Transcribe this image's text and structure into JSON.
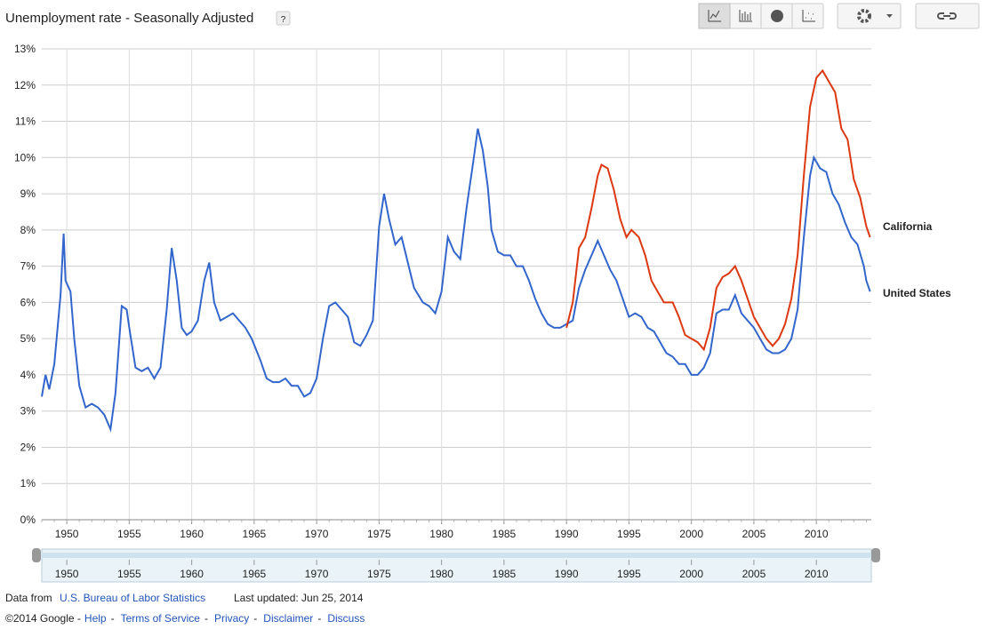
{
  "header": {
    "title": "Unemployment rate - Seasonally Adjusted",
    "help": "?"
  },
  "chart_data": {
    "type": "line",
    "xlim": [
      1948,
      2014.4
    ],
    "xticks": [
      1950,
      1955,
      1960,
      1965,
      1970,
      1975,
      1980,
      1985,
      1990,
      1995,
      2000,
      2005,
      2010
    ],
    "ylim": [
      0,
      13
    ],
    "yticks": [
      {
        "value": 0,
        "label": "0%"
      },
      {
        "value": 1,
        "label": "1%"
      },
      {
        "value": 2,
        "label": "2%"
      },
      {
        "value": 3,
        "label": "3%"
      },
      {
        "value": 4,
        "label": "4%"
      },
      {
        "value": 5,
        "label": "5%"
      },
      {
        "value": 6,
        "label": "6%"
      },
      {
        "value": 7,
        "label": "7%"
      },
      {
        "value": 8,
        "label": "8%"
      },
      {
        "value": 9,
        "label": "9%"
      },
      {
        "value": 10,
        "label": "10%"
      },
      {
        "value": 11,
        "label": "11%"
      },
      {
        "value": 12,
        "label": "12%"
      },
      {
        "value": 13,
        "label": "13%"
      }
    ],
    "grid": true,
    "series": [
      {
        "name": "United States",
        "color": "#3366cc",
        "x": [
          1948.0,
          1948.3,
          1948.6,
          1949.0,
          1949.5,
          1949.75,
          1949.9,
          1950.3,
          1950.6,
          1951.0,
          1951.5,
          1952.0,
          1952.5,
          1953.0,
          1953.5,
          1953.9,
          1954.4,
          1954.8,
          1955.0,
          1955.5,
          1956.0,
          1956.5,
          1957.0,
          1957.5,
          1958.0,
          1958.4,
          1958.8,
          1959.2,
          1959.6,
          1960.0,
          1960.5,
          1961.0,
          1961.4,
          1961.8,
          1962.3,
          1962.8,
          1963.3,
          1963.8,
          1964.3,
          1964.8,
          1965.5,
          1966.0,
          1966.5,
          1967.0,
          1967.5,
          1968.0,
          1968.5,
          1969.0,
          1969.5,
          1970.0,
          1970.5,
          1971.0,
          1971.5,
          1972.0,
          1972.5,
          1973.0,
          1973.5,
          1974.0,
          1974.5,
          1975.0,
          1975.4,
          1975.8,
          1976.3,
          1976.8,
          1977.3,
          1977.8,
          1978.5,
          1979.0,
          1979.5,
          1980.0,
          1980.5,
          1981.0,
          1981.5,
          1982.0,
          1982.5,
          1982.9,
          1983.3,
          1983.7,
          1984.0,
          1984.5,
          1985.0,
          1985.5,
          1986.0,
          1986.5,
          1987.0,
          1987.5,
          1988.0,
          1988.5,
          1989.0,
          1989.5,
          1990.0,
          1990.5,
          1991.0,
          1991.5,
          1992.0,
          1992.5,
          1993.0,
          1993.5,
          1994.0,
          1994.5,
          1995.0,
          1995.5,
          1996.0,
          1996.5,
          1997.0,
          1997.5,
          1998.0,
          1998.5,
          1999.0,
          1999.5,
          2000.0,
          2000.5,
          2001.0,
          2001.5,
          2002.0,
          2002.5,
          2003.0,
          2003.5,
          2004.0,
          2004.5,
          2005.0,
          2005.5,
          2006.0,
          2006.5,
          2007.0,
          2007.5,
          2008.0,
          2008.5,
          2009.0,
          2009.5,
          2009.8,
          2010.3,
          2010.8,
          2011.3,
          2011.8,
          2012.3,
          2012.8,
          2013.3,
          2013.8,
          2014.0,
          2014.3
        ],
        "values": [
          3.4,
          4.0,
          3.6,
          4.3,
          6.2,
          7.9,
          6.6,
          6.3,
          5.0,
          3.7,
          3.1,
          3.2,
          3.1,
          2.9,
          2.5,
          3.5,
          5.9,
          5.8,
          5.3,
          4.2,
          4.1,
          4.2,
          3.9,
          4.2,
          5.8,
          7.5,
          6.6,
          5.3,
          5.1,
          5.2,
          5.5,
          6.6,
          7.1,
          6.0,
          5.5,
          5.6,
          5.7,
          5.5,
          5.3,
          5.0,
          4.4,
          3.9,
          3.8,
          3.8,
          3.9,
          3.7,
          3.7,
          3.4,
          3.5,
          3.9,
          5.0,
          5.9,
          6.0,
          5.8,
          5.6,
          4.9,
          4.8,
          5.1,
          5.5,
          8.1,
          9.0,
          8.3,
          7.6,
          7.8,
          7.1,
          6.4,
          6.0,
          5.9,
          5.7,
          6.3,
          7.8,
          7.4,
          7.2,
          8.6,
          9.8,
          10.8,
          10.2,
          9.2,
          8.0,
          7.4,
          7.3,
          7.3,
          7.0,
          7.0,
          6.6,
          6.1,
          5.7,
          5.4,
          5.3,
          5.3,
          5.4,
          5.5,
          6.4,
          6.9,
          7.3,
          7.7,
          7.3,
          6.9,
          6.6,
          6.1,
          5.6,
          5.7,
          5.6,
          5.3,
          5.2,
          4.9,
          4.6,
          4.5,
          4.3,
          4.3,
          4.0,
          4.0,
          4.2,
          4.6,
          5.7,
          5.8,
          5.8,
          6.2,
          5.7,
          5.5,
          5.3,
          5.0,
          4.7,
          4.6,
          4.6,
          4.7,
          5.0,
          5.8,
          7.8,
          9.5,
          10.0,
          9.7,
          9.6,
          9.0,
          8.7,
          8.2,
          7.8,
          7.6,
          7.0,
          6.6,
          6.3
        ]
      },
      {
        "name": "California",
        "color": "#dc3912",
        "x": [
          1990.0,
          1990.5,
          1991.0,
          1991.5,
          1992.0,
          1992.5,
          1992.8,
          1993.3,
          1993.8,
          1994.3,
          1994.8,
          1995.2,
          1995.8,
          1996.3,
          1996.8,
          1997.3,
          1997.8,
          1998.5,
          1999.0,
          1999.5,
          2000.0,
          2000.5,
          2001.0,
          2001.5,
          2002.0,
          2002.5,
          2003.0,
          2003.5,
          2004.0,
          2004.5,
          2005.0,
          2005.5,
          2006.0,
          2006.5,
          2007.0,
          2007.5,
          2008.0,
          2008.5,
          2009.0,
          2009.5,
          2010.0,
          2010.5,
          2011.0,
          2011.5,
          2012.0,
          2012.5,
          2013.0,
          2013.5,
          2014.0,
          2014.3
        ],
        "values": [
          5.3,
          6.0,
          7.5,
          7.8,
          8.6,
          9.5,
          9.8,
          9.7,
          9.1,
          8.3,
          7.8,
          8.0,
          7.8,
          7.3,
          6.6,
          6.3,
          6.0,
          6.0,
          5.6,
          5.1,
          5.0,
          4.9,
          4.7,
          5.3,
          6.4,
          6.7,
          6.8,
          7.0,
          6.6,
          6.1,
          5.6,
          5.3,
          5.0,
          4.8,
          5.0,
          5.4,
          6.1,
          7.3,
          9.5,
          11.4,
          12.2,
          12.4,
          12.1,
          11.8,
          10.8,
          10.5,
          9.4,
          8.9,
          8.1,
          7.8
        ]
      }
    ]
  },
  "footer": {
    "data_from": "Data from",
    "source": "U.S. Bureau of Labor Statistics",
    "updated": "Last updated: Jun 25, 2014",
    "copyright": "©2014 Google -",
    "links": [
      "Help",
      "Terms of Service",
      "Privacy",
      "Disclaimer",
      "Discuss"
    ]
  }
}
